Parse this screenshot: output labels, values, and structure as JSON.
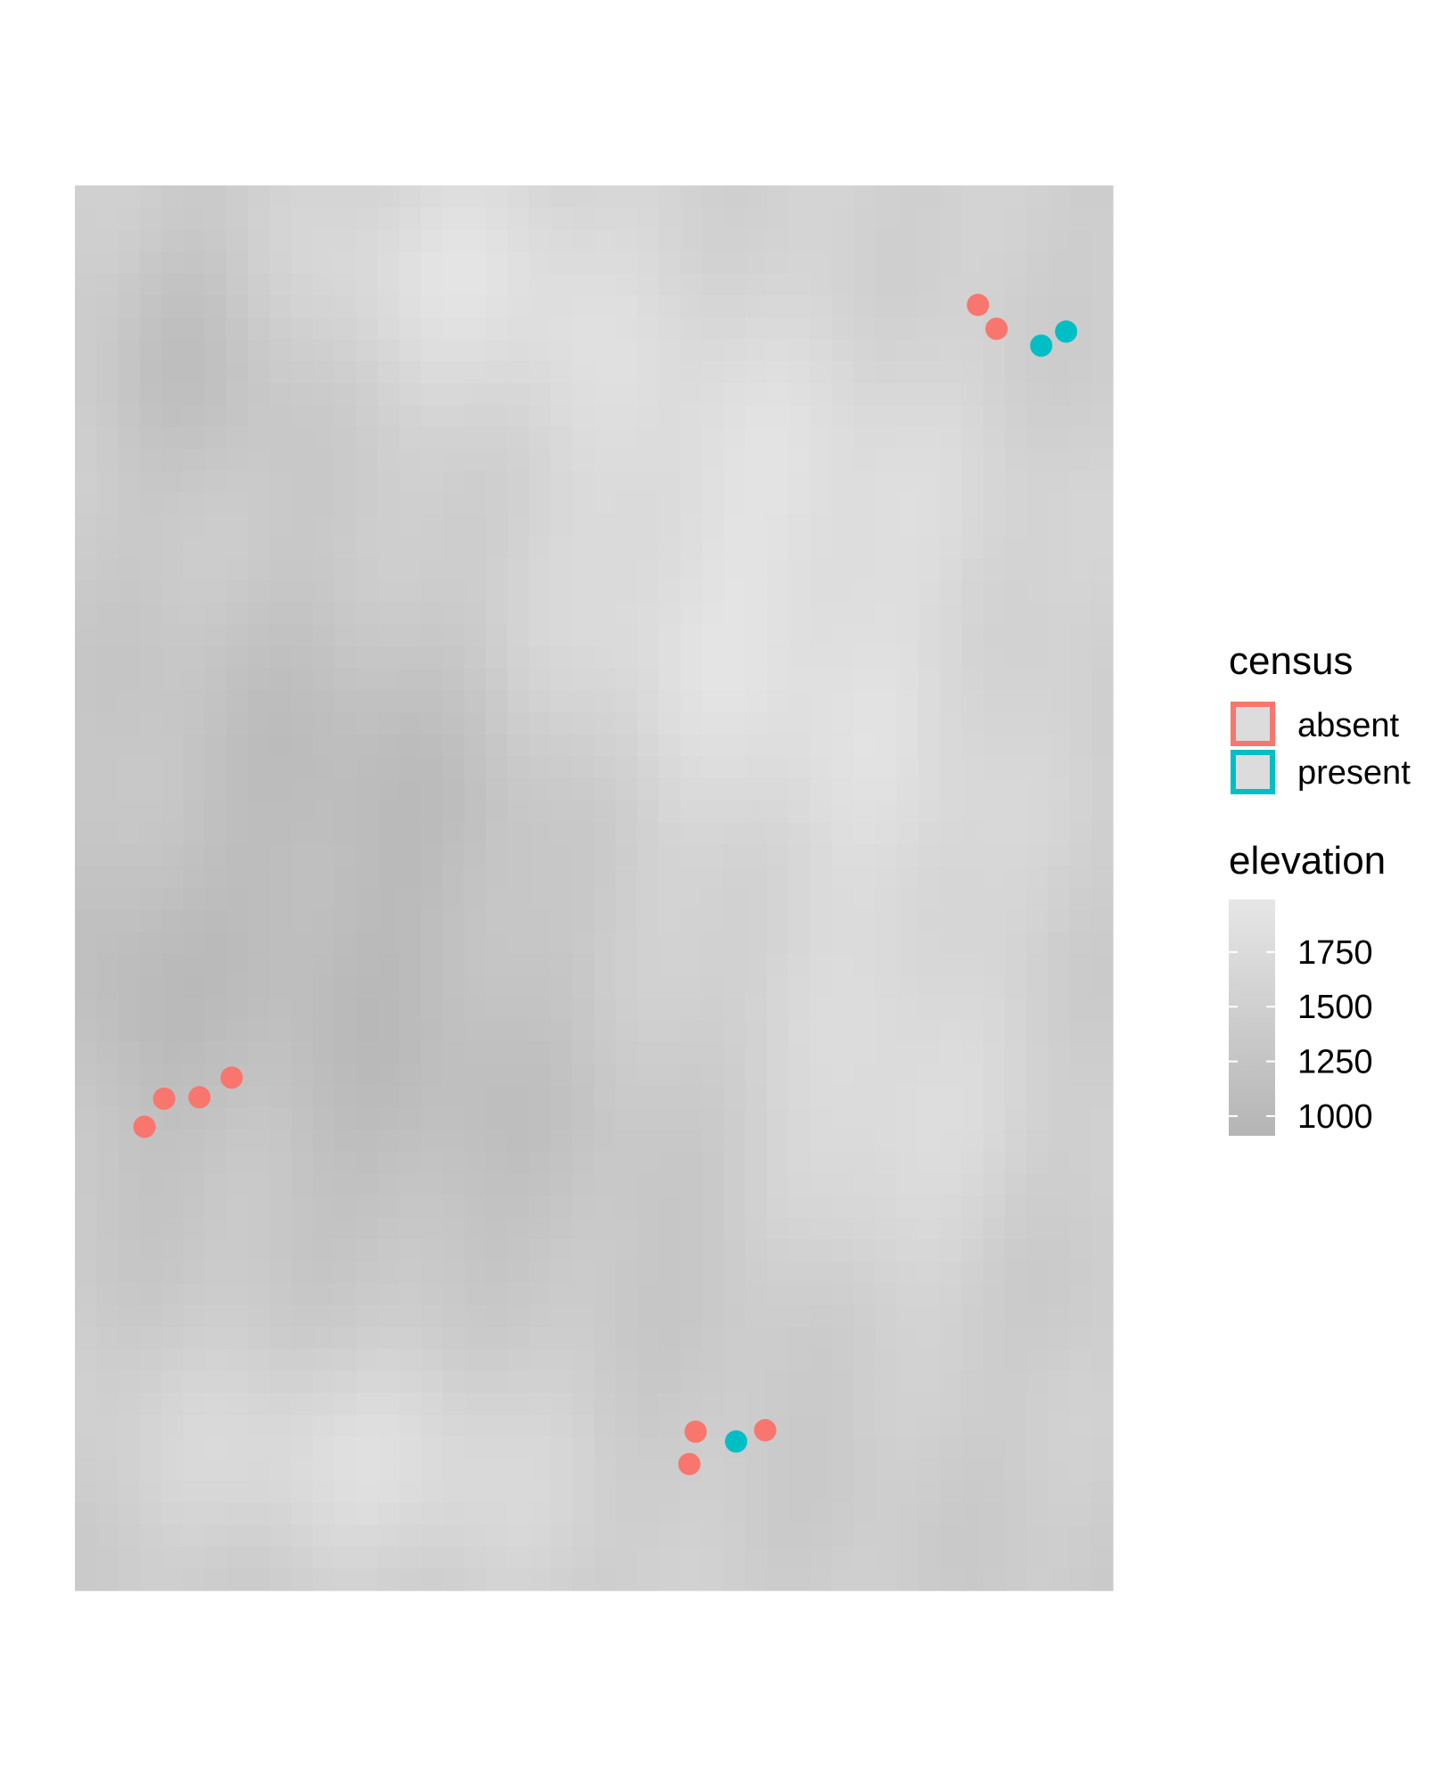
{
  "chart_data": {
    "type": "scatter",
    "title": "",
    "xlabel": "",
    "ylabel": "",
    "axes_visible": false,
    "background": "elevation raster (grayscale)",
    "xlim": [
      0,
      100
    ],
    "ylim": [
      0,
      100
    ],
    "census_legend": {
      "title": "census",
      "entries": [
        {
          "label": "absent",
          "color": "#F8766D"
        },
        {
          "label": "present",
          "color": "#00BFC4"
        }
      ]
    },
    "elevation_legend": {
      "title": "elevation",
      "ticks": [
        {
          "value": 1000,
          "label": "1000"
        },
        {
          "value": 1250,
          "label": "1250"
        },
        {
          "value": 1500,
          "label": "1500"
        },
        {
          "value": 1750,
          "label": "1750"
        }
      ],
      "range": [
        910,
        1990
      ],
      "color_low": "#b5b5b5",
      "color_high": "#e6e6e6"
    },
    "series": [
      {
        "name": "absent",
        "color": "#F8766D",
        "points": [
          {
            "x": 87.0,
            "y": 91.5
          },
          {
            "x": 88.8,
            "y": 89.8
          },
          {
            "x": 6.7,
            "y": 33.0
          },
          {
            "x": 8.6,
            "y": 35.0
          },
          {
            "x": 12.0,
            "y": 35.1
          },
          {
            "x": 15.1,
            "y": 36.5
          },
          {
            "x": 59.8,
            "y": 11.3
          },
          {
            "x": 59.2,
            "y": 9.0
          },
          {
            "x": 66.5,
            "y": 11.4
          }
        ]
      },
      {
        "name": "present",
        "color": "#00BFC4",
        "points": [
          {
            "x": 93.1,
            "y": 88.6
          },
          {
            "x": 95.5,
            "y": 89.6
          },
          {
            "x": 63.7,
            "y": 10.6
          }
        ]
      }
    ]
  }
}
